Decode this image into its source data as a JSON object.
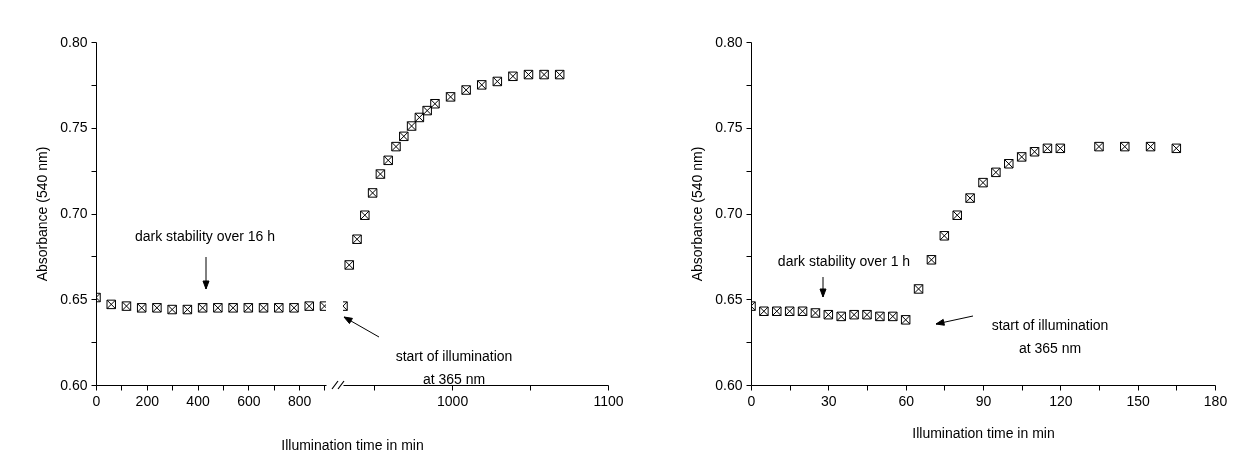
{
  "chart_data": [
    {
      "type": "scatter",
      "xlabel": "Illumination time in min",
      "ylabel": "Absorbance (540 nm)",
      "marker": "cross",
      "x": [
        0,
        60,
        120,
        180,
        240,
        300,
        360,
        420,
        480,
        540,
        600,
        660,
        720,
        780,
        840,
        900
      ],
      "series": [
        {
          "color": "#000000",
          "values": [
            0.651,
            0.647,
            0.646,
            0.645,
            0.645,
            0.644,
            0.644,
            0.645,
            0.645,
            0.645,
            0.645,
            0.645,
            0.645,
            0.645,
            0.646,
            0.646
          ]
        }
      ],
      "xlim": [
        0,
        906
      ],
      "xticks": [
        0,
        {
          "value": 100,
          "label": null
        },
        200,
        {
          "value": 300,
          "label": null
        },
        400,
        {
          "value": 500,
          "label": null
        },
        600,
        {
          "value": 700,
          "label": null
        },
        800,
        {
          "value": 900,
          "label": null
        }
      ],
      "ylim": [
        0.6,
        0.8
      ],
      "yticks": [
        {
          "value": 0.6,
          "label": "0.60"
        },
        {
          "value": 0.625,
          "label": null
        },
        {
          "value": 0.65,
          "label": "0.65"
        },
        {
          "value": 0.675,
          "label": null
        },
        {
          "value": 0.7,
          "label": "0.70"
        },
        {
          "value": 0.725,
          "label": null
        },
        {
          "value": 0.75,
          "label": "0.75"
        },
        {
          "value": 0.775,
          "label": null
        },
        {
          "value": 0.8,
          "label": "0.80"
        }
      ],
      "annotations": [
        "dark stability over 16 h"
      ]
    },
    {
      "type": "scatter",
      "marker": "cross",
      "tick_labels": "x",
      "x": [
        930,
        934,
        939,
        944,
        949,
        954,
        959,
        964,
        969,
        974,
        979,
        984,
        989,
        999,
        1009,
        1019,
        1029,
        1039,
        1049,
        1059,
        1069
      ],
      "series": [
        {
          "color": "#000000",
          "values": [
            0.646,
            0.67,
            0.685,
            0.699,
            0.712,
            0.723,
            0.731,
            0.739,
            0.745,
            0.751,
            0.756,
            0.76,
            0.764,
            0.768,
            0.772,
            0.775,
            0.777,
            0.78,
            0.781,
            0.781,
            0.781
          ]
        }
      ],
      "xlim": [
        930,
        1100
      ],
      "xticks": [
        {
          "value": 950,
          "label": null
        },
        1000,
        {
          "value": 1050,
          "label": null
        },
        1100
      ],
      "ylim": [
        0.6,
        0.8
      ],
      "annotations": [
        "start of illumination\nat 365 nm"
      ]
    },
    {
      "type": "scatter",
      "xlabel": "Illumination time in min",
      "ylabel": "Absorbance (540 nm)",
      "marker": "cross",
      "x": [
        0,
        5,
        10,
        15,
        20,
        25,
        30,
        35,
        40,
        45,
        50,
        55,
        60,
        65,
        70,
        75,
        80,
        85,
        90,
        95,
        100,
        105,
        110,
        115,
        120,
        135,
        145,
        155,
        165
      ],
      "series": [
        {
          "color": "#000000",
          "values": [
            0.646,
            0.643,
            0.643,
            0.643,
            0.643,
            0.642,
            0.641,
            0.64,
            0.641,
            0.641,
            0.64,
            0.64,
            0.638,
            0.656,
            0.673,
            0.687,
            0.699,
            0.709,
            0.718,
            0.724,
            0.729,
            0.733,
            0.736,
            0.738,
            0.738,
            0.739,
            0.739,
            0.739,
            0.738
          ]
        }
      ],
      "xlim": [
        0,
        180
      ],
      "xticks": [
        0,
        {
          "value": 15,
          "label": null
        },
        30,
        {
          "value": 45,
          "label": null
        },
        60,
        {
          "value": 75,
          "label": null
        },
        90,
        {
          "value": 105,
          "label": null
        },
        120,
        {
          "value": 135,
          "label": null
        },
        150,
        {
          "value": 165,
          "label": null
        },
        180
      ],
      "ylim": [
        0.6,
        0.8
      ],
      "yticks": [
        {
          "value": 0.6,
          "label": "0.60"
        },
        {
          "value": 0.625,
          "label": null
        },
        {
          "value": 0.65,
          "label": "0.65"
        },
        {
          "value": 0.675,
          "label": null
        },
        {
          "value": 0.7,
          "label": "0.70"
        },
        {
          "value": 0.725,
          "label": null
        },
        {
          "value": 0.75,
          "label": "0.75"
        },
        {
          "value": 0.775,
          "label": null
        },
        {
          "value": 0.8,
          "label": "0.80"
        }
      ],
      "annotations": [
        "dark stability over 1 h",
        "start of illumination\nat 365 nm"
      ]
    }
  ]
}
